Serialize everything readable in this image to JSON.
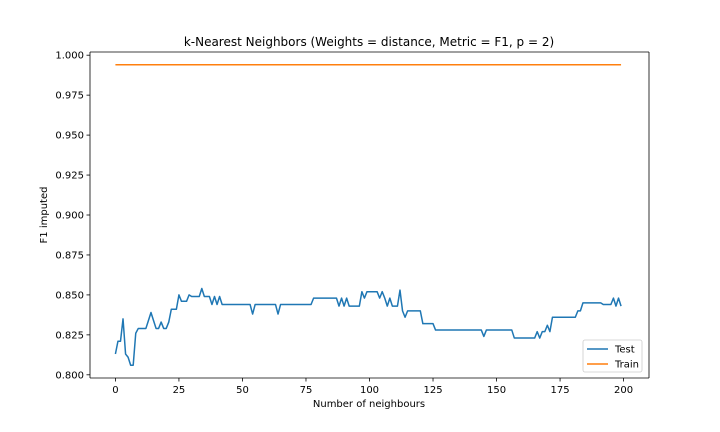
{
  "chart_data": {
    "type": "line",
    "title": "k-Nearest Neighbors (Weights = distance, Metric = F1, p = 2)",
    "xlabel": "Number of neighbours",
    "ylabel": "F1 imputed",
    "xlim": [
      -10,
      210
    ],
    "ylim": [
      0.798,
      1.002
    ],
    "xticks": [
      0,
      25,
      50,
      75,
      100,
      125,
      150,
      175,
      200
    ],
    "yticks": [
      0.8,
      0.825,
      0.85,
      0.875,
      0.9,
      0.925,
      0.95,
      0.975,
      1.0
    ],
    "ytick_labels": [
      "0.800",
      "0.825",
      "0.850",
      "0.875",
      "0.900",
      "0.925",
      "0.950",
      "0.975",
      "1.000"
    ],
    "grid": false,
    "legend_position": "lower-right",
    "series": [
      {
        "name": "Test",
        "color": "#1f77b4",
        "points": [
          [
            0,
            0.813
          ],
          [
            1,
            0.821
          ],
          [
            2,
            0.821
          ],
          [
            3,
            0.835
          ],
          [
            4,
            0.813
          ],
          [
            5,
            0.811
          ],
          [
            6,
            0.806
          ],
          [
            7,
            0.806
          ],
          [
            8,
            0.826
          ],
          [
            9,
            0.829
          ],
          [
            10,
            0.829
          ],
          [
            11,
            0.829
          ],
          [
            12,
            0.829
          ],
          [
            13,
            0.834
          ],
          [
            14,
            0.839
          ],
          [
            15,
            0.834
          ],
          [
            16,
            0.829
          ],
          [
            17,
            0.829
          ],
          [
            18,
            0.833
          ],
          [
            19,
            0.829
          ],
          [
            20,
            0.829
          ],
          [
            21,
            0.833
          ],
          [
            22,
            0.841
          ],
          [
            23,
            0.841
          ],
          [
            24,
            0.841
          ],
          [
            25,
            0.85
          ],
          [
            26,
            0.846
          ],
          [
            27,
            0.846
          ],
          [
            28,
            0.846
          ],
          [
            29,
            0.85
          ],
          [
            30,
            0.849
          ],
          [
            31,
            0.849
          ],
          [
            32,
            0.849
          ],
          [
            33,
            0.849
          ],
          [
            34,
            0.854
          ],
          [
            35,
            0.849
          ],
          [
            36,
            0.849
          ],
          [
            37,
            0.849
          ],
          [
            38,
            0.844
          ],
          [
            39,
            0.849
          ],
          [
            40,
            0.844
          ],
          [
            41,
            0.849
          ],
          [
            42,
            0.844
          ],
          [
            43,
            0.844
          ],
          [
            44,
            0.844
          ],
          [
            45,
            0.844
          ],
          [
            46,
            0.844
          ],
          [
            47,
            0.844
          ],
          [
            48,
            0.844
          ],
          [
            49,
            0.844
          ],
          [
            50,
            0.844
          ],
          [
            51,
            0.844
          ],
          [
            52,
            0.844
          ],
          [
            53,
            0.844
          ],
          [
            54,
            0.838
          ],
          [
            55,
            0.844
          ],
          [
            56,
            0.844
          ],
          [
            57,
            0.844
          ],
          [
            58,
            0.844
          ],
          [
            59,
            0.844
          ],
          [
            60,
            0.844
          ],
          [
            61,
            0.844
          ],
          [
            62,
            0.844
          ],
          [
            63,
            0.844
          ],
          [
            64,
            0.838
          ],
          [
            65,
            0.844
          ],
          [
            66,
            0.844
          ],
          [
            67,
            0.844
          ],
          [
            68,
            0.844
          ],
          [
            69,
            0.844
          ],
          [
            70,
            0.844
          ],
          [
            71,
            0.844
          ],
          [
            72,
            0.844
          ],
          [
            73,
            0.844
          ],
          [
            74,
            0.844
          ],
          [
            75,
            0.844
          ],
          [
            76,
            0.844
          ],
          [
            77,
            0.844
          ],
          [
            78,
            0.848
          ],
          [
            79,
            0.848
          ],
          [
            80,
            0.848
          ],
          [
            81,
            0.848
          ],
          [
            82,
            0.848
          ],
          [
            83,
            0.848
          ],
          [
            84,
            0.848
          ],
          [
            85,
            0.848
          ],
          [
            86,
            0.848
          ],
          [
            87,
            0.848
          ],
          [
            88,
            0.843
          ],
          [
            89,
            0.848
          ],
          [
            90,
            0.843
          ],
          [
            91,
            0.848
          ],
          [
            92,
            0.843
          ],
          [
            93,
            0.843
          ],
          [
            94,
            0.843
          ],
          [
            95,
            0.843
          ],
          [
            96,
            0.843
          ],
          [
            97,
            0.852
          ],
          [
            98,
            0.848
          ],
          [
            99,
            0.852
          ],
          [
            100,
            0.852
          ],
          [
            101,
            0.852
          ],
          [
            102,
            0.852
          ],
          [
            103,
            0.852
          ],
          [
            104,
            0.848
          ],
          [
            105,
            0.852
          ],
          [
            106,
            0.848
          ],
          [
            107,
            0.843
          ],
          [
            108,
            0.848
          ],
          [
            109,
            0.843
          ],
          [
            110,
            0.843
          ],
          [
            111,
            0.843
          ],
          [
            112,
            0.853
          ],
          [
            113,
            0.84
          ],
          [
            114,
            0.836
          ],
          [
            115,
            0.84
          ],
          [
            116,
            0.84
          ],
          [
            117,
            0.84
          ],
          [
            118,
            0.84
          ],
          [
            119,
            0.84
          ],
          [
            120,
            0.84
          ],
          [
            121,
            0.832
          ],
          [
            122,
            0.832
          ],
          [
            123,
            0.832
          ],
          [
            124,
            0.832
          ],
          [
            125,
            0.832
          ],
          [
            126,
            0.828
          ],
          [
            127,
            0.828
          ],
          [
            128,
            0.828
          ],
          [
            129,
            0.828
          ],
          [
            130,
            0.828
          ],
          [
            131,
            0.828
          ],
          [
            132,
            0.828
          ],
          [
            133,
            0.828
          ],
          [
            134,
            0.828
          ],
          [
            135,
            0.828
          ],
          [
            136,
            0.828
          ],
          [
            137,
            0.828
          ],
          [
            138,
            0.828
          ],
          [
            139,
            0.828
          ],
          [
            140,
            0.828
          ],
          [
            141,
            0.828
          ],
          [
            142,
            0.828
          ],
          [
            143,
            0.828
          ],
          [
            144,
            0.828
          ],
          [
            145,
            0.824
          ],
          [
            146,
            0.828
          ],
          [
            147,
            0.828
          ],
          [
            148,
            0.828
          ],
          [
            149,
            0.828
          ],
          [
            150,
            0.828
          ],
          [
            151,
            0.828
          ],
          [
            152,
            0.828
          ],
          [
            153,
            0.828
          ],
          [
            154,
            0.828
          ],
          [
            155,
            0.828
          ],
          [
            156,
            0.828
          ],
          [
            157,
            0.823
          ],
          [
            158,
            0.823
          ],
          [
            159,
            0.823
          ],
          [
            160,
            0.823
          ],
          [
            161,
            0.823
          ],
          [
            162,
            0.823
          ],
          [
            163,
            0.823
          ],
          [
            164,
            0.823
          ],
          [
            165,
            0.823
          ],
          [
            166,
            0.827
          ],
          [
            167,
            0.823
          ],
          [
            168,
            0.827
          ],
          [
            169,
            0.827
          ],
          [
            170,
            0.831
          ],
          [
            171,
            0.827
          ],
          [
            172,
            0.836
          ],
          [
            173,
            0.836
          ],
          [
            174,
            0.836
          ],
          [
            175,
            0.836
          ],
          [
            176,
            0.836
          ],
          [
            177,
            0.836
          ],
          [
            178,
            0.836
          ],
          [
            179,
            0.836
          ],
          [
            180,
            0.836
          ],
          [
            181,
            0.836
          ],
          [
            182,
            0.84
          ],
          [
            183,
            0.84
          ],
          [
            184,
            0.845
          ],
          [
            185,
            0.845
          ],
          [
            186,
            0.845
          ],
          [
            187,
            0.845
          ],
          [
            188,
            0.845
          ],
          [
            189,
            0.845
          ],
          [
            190,
            0.845
          ],
          [
            191,
            0.845
          ],
          [
            192,
            0.844
          ],
          [
            193,
            0.844
          ],
          [
            194,
            0.844
          ],
          [
            195,
            0.844
          ],
          [
            196,
            0.848
          ],
          [
            197,
            0.843
          ],
          [
            198,
            0.848
          ],
          [
            199,
            0.843
          ]
        ]
      },
      {
        "name": "Train",
        "color": "#ff7f0e",
        "points": [
          [
            0,
            0.994
          ],
          [
            199,
            0.994
          ]
        ]
      }
    ]
  }
}
